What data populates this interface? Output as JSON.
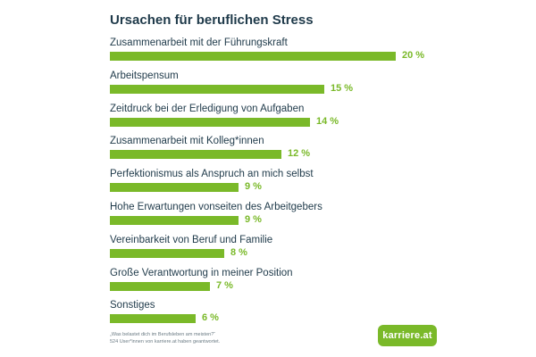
{
  "chart_data": {
    "type": "bar",
    "orientation": "horizontal",
    "title": "Ursachen für beruflichen Stress",
    "categories": [
      "Zusammenarbeit mit der Führungskraft",
      "Arbeitspensum",
      "Zeitdruck bei der Erledigung von Aufgaben",
      "Zusammenarbeit mit Kolleg*innen",
      "Perfektionismus als Anspruch an mich selbst",
      "Hohe Erwartungen vonseiten des Arbeitgebers",
      "Vereinbarkeit von Beruf und Familie",
      "Große Verantwortung in meiner Position",
      "Sonstiges"
    ],
    "values": [
      20,
      15,
      14,
      12,
      9,
      9,
      8,
      7,
      6
    ],
    "value_labels": [
      "20 %",
      "15 %",
      "14 %",
      "12 %",
      "9 %",
      "9 %",
      "8 %",
      "7 %",
      "6 %"
    ],
    "unit": "%",
    "xlim": [
      0,
      20
    ],
    "bar_color": "#7ab929",
    "xlabel": "",
    "ylabel": ""
  },
  "footnote": {
    "line1": "„Was belastet dich im Berufsleben am meisten?“",
    "line2": "524 User*innen von karriere.at haben geantwortet."
  },
  "logo": {
    "text": "karriere.at",
    "color": "#7ab929"
  }
}
